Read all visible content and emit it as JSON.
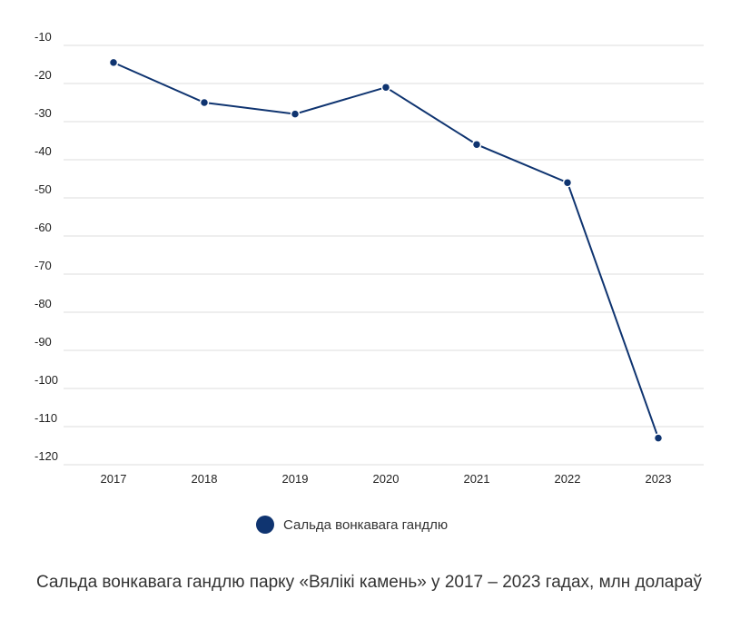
{
  "chart_data": {
    "type": "line",
    "categories": [
      "2017",
      "2018",
      "2019",
      "2020",
      "2021",
      "2022",
      "2023"
    ],
    "series": [
      {
        "name": "Сальда вонкавага гандлю",
        "values": [
          -14.5,
          -25,
          -28,
          -21,
          -36,
          -46,
          -113
        ]
      }
    ],
    "yticks": [
      -10,
      -20,
      -30,
      -40,
      -50,
      -60,
      -70,
      -80,
      -90,
      -100,
      -110,
      -120
    ],
    "ylim": [
      -120,
      -10
    ],
    "grid": true,
    "legend_position": "bottom-center",
    "color": "#0f3470"
  },
  "caption": "Сальда вонкавага гандлю парку «Вялікі камень» у 2017 – 2023 гадах, млн долараў"
}
